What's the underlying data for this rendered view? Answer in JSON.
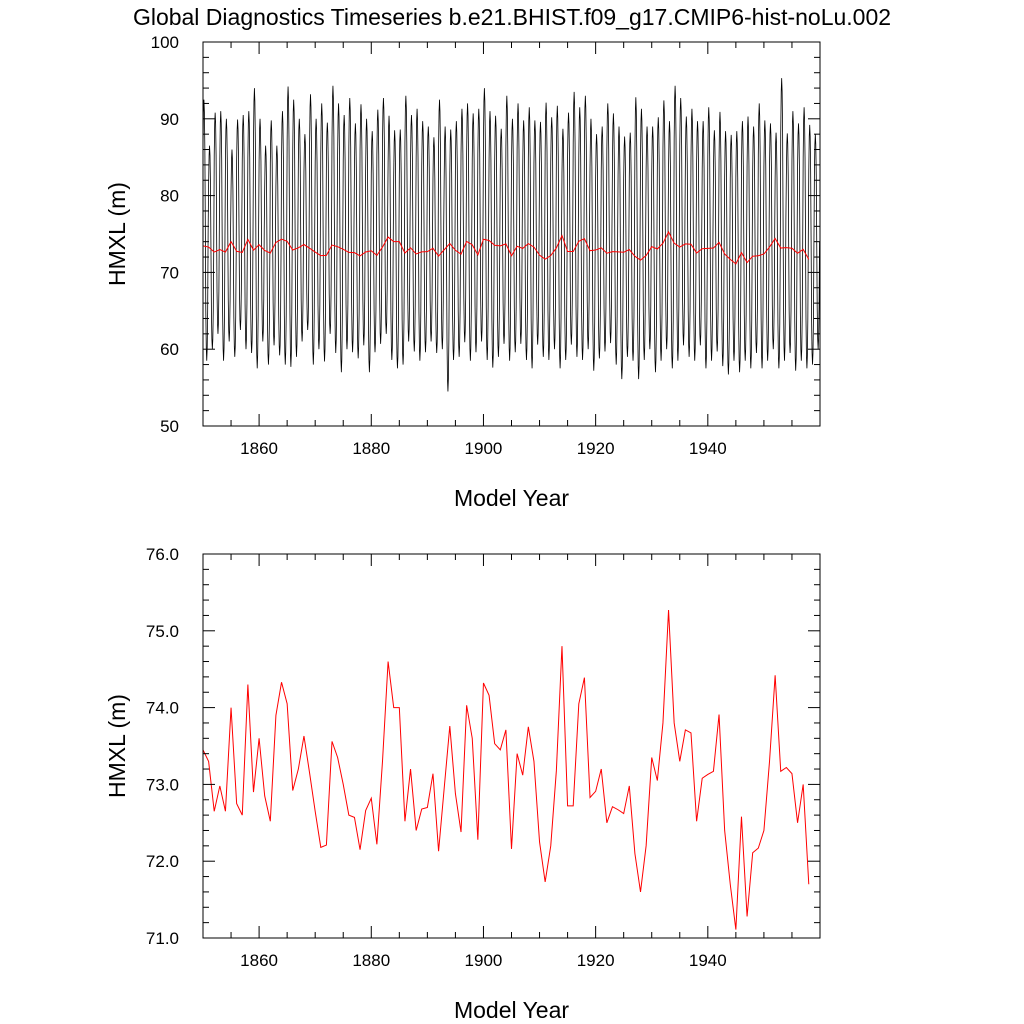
{
  "figure": {
    "title": "Global Diagnostics Timeseries b.e21.BHIST.f09_g17.CMIP6-hist-noLu.002"
  },
  "colors": {
    "monthly": "#000000",
    "annual": "#ff0000"
  },
  "chart_data": [
    {
      "type": "line",
      "xlabel": "Model Year",
      "ylabel": "HMXL (m)",
      "xlim": [
        1850,
        1960
      ],
      "ylim": [
        50,
        100
      ],
      "x_ticks": [
        1860,
        1880,
        1900,
        1920,
        1940
      ],
      "x_tick_labels": [
        "1860",
        "1880",
        "1900",
        "1920",
        "1940"
      ],
      "y_ticks": [
        50,
        60,
        70,
        80,
        90,
        100
      ],
      "y_tick_labels": [
        "50",
        "60",
        "70",
        "80",
        "90",
        "100"
      ],
      "series": [
        {
          "kind": "monthly",
          "color": "#000000",
          "x": [
            1850,
            1959
          ],
          "annual_maxima": [
            92.5,
            86.5,
            90.8,
            91.0,
            90.0,
            86.0,
            89.9,
            90.5,
            91.0,
            94.0,
            90.0,
            86.5,
            89.8,
            86.5,
            91.0,
            94.2,
            92.5,
            90.0,
            88.0,
            93.2,
            90.0,
            92.0,
            89.5,
            94.3,
            92.0,
            90.5,
            92.7,
            89.4,
            91.9,
            90.0,
            88.4,
            91.2,
            92.7,
            90.4,
            88.5,
            88.6,
            93.0,
            90.5,
            91.3,
            89.7,
            89.0,
            87.6,
            92.5,
            89.0,
            88.6,
            89.7,
            91.3,
            92.0,
            90.7,
            91.3,
            94.0,
            91.0,
            90.4,
            88.7,
            93.0,
            90.0,
            92.0,
            89.8,
            91.5,
            89.8,
            89.6,
            92.1,
            90.2,
            91.7,
            88.7,
            90.8,
            93.5,
            91.5,
            93.0,
            90.0,
            88.0,
            89.0,
            92.0,
            90.7,
            89.0,
            87.7,
            88.2,
            92.8,
            91.3,
            89.0,
            89.0,
            90.2,
            92.4,
            89.7,
            94.3,
            92.7,
            90.3,
            91.3,
            89.7,
            89.7,
            91.5,
            88.5,
            90.9,
            88.4,
            87.9,
            88.4,
            89.7,
            90.3,
            89.0,
            92.0,
            89.8,
            89.4,
            88.2,
            95.3,
            88.1,
            91.0,
            89.4,
            91.5,
            89.2,
            88.0
          ],
          "annual_minima": [
            58.5,
            60.0,
            62.0,
            58.5,
            61.0,
            59.0,
            62.5,
            60.0,
            59.5,
            57.5,
            61.0,
            58.0,
            60.5,
            59.2,
            58.0,
            57.7,
            59.0,
            61.0,
            62.5,
            58.0,
            60.0,
            58.4,
            62.0,
            59.5,
            57.0,
            60.0,
            59.6,
            58.8,
            60.5,
            57.0,
            59.6,
            60.7,
            62.0,
            58.6,
            57.5,
            58.0,
            61.0,
            59.7,
            58.5,
            59.6,
            61.0,
            59.5,
            60.0,
            54.5,
            58.6,
            59.0,
            60.9,
            58.5,
            59.6,
            61.0,
            58.6,
            57.6,
            59.0,
            60.7,
            58.5,
            59.6,
            60.7,
            58.6,
            57.5,
            60.6,
            59.0,
            58.6,
            60.0,
            57.5,
            58.6,
            60.6,
            59.0,
            58.6,
            60.0,
            57.2,
            58.8,
            59.7,
            60.8,
            58.0,
            56.1,
            59.0,
            58.5,
            56.1,
            58.6,
            60.0,
            57.0,
            58.5,
            60.0,
            57.5,
            58.5,
            60.5,
            59.0,
            58.5,
            60.5,
            57.5,
            58.5,
            59.7,
            57.8,
            56.7,
            58.5,
            57.0,
            58.5,
            57.5,
            59.5,
            57.5,
            58.5,
            60.0,
            57.5,
            58.5,
            59.5,
            57.2,
            58.5,
            57.5,
            58.0,
            60.0
          ]
        },
        {
          "kind": "annual",
          "color": "#ff0000",
          "x_start": 1850,
          "values": [
            73.45,
            73.3,
            72.65,
            72.98,
            72.65,
            74.0,
            72.75,
            72.6,
            74.3,
            72.9,
            73.6,
            72.85,
            72.52,
            73.9,
            74.33,
            74.05,
            72.92,
            73.2,
            73.63,
            73.15,
            72.65,
            72.18,
            72.21,
            73.56,
            73.35,
            73.0,
            72.6,
            72.57,
            72.15,
            72.66,
            72.82,
            72.22,
            73.3,
            74.6,
            74.0,
            74.0,
            72.52,
            73.2,
            72.4,
            72.68,
            72.7,
            73.14,
            72.13,
            72.95,
            73.76,
            72.88,
            72.38,
            74.03,
            73.6,
            72.28,
            74.32,
            74.16,
            73.53,
            73.45,
            73.71,
            72.16,
            73.4,
            73.12,
            73.75,
            73.3,
            72.25,
            71.73,
            72.2,
            73.18,
            74.8,
            72.72,
            72.72,
            74.05,
            74.39,
            72.83,
            72.91,
            73.2,
            72.5,
            72.71,
            72.67,
            72.62,
            72.98,
            72.1,
            71.6,
            72.2,
            73.35,
            73.05,
            73.8,
            75.27,
            73.8,
            73.3,
            73.71,
            73.67,
            72.52,
            73.08,
            73.13,
            73.17,
            73.91,
            72.4,
            71.7,
            71.11,
            72.58,
            71.28,
            72.11,
            72.17,
            72.4,
            73.3,
            74.42,
            73.17,
            73.22,
            73.14,
            72.5,
            73.0,
            71.7
          ]
        }
      ]
    },
    {
      "type": "line",
      "xlabel": "Model Year",
      "ylabel": "HMXL (m)",
      "xlim": [
        1850,
        1960
      ],
      "ylim": [
        71.0,
        76.0
      ],
      "x_ticks": [
        1860,
        1880,
        1900,
        1920,
        1940
      ],
      "x_tick_labels": [
        "1860",
        "1880",
        "1900",
        "1920",
        "1940"
      ],
      "y_ticks": [
        71.0,
        72.0,
        73.0,
        74.0,
        75.0,
        76.0
      ],
      "y_tick_labels": [
        "71.0",
        "72.0",
        "73.0",
        "74.0",
        "75.0",
        "76.0"
      ],
      "series": [
        {
          "kind": "annual",
          "color": "#ff0000",
          "x_start": 1850,
          "values": [
            73.45,
            73.3,
            72.65,
            72.98,
            72.65,
            74.0,
            72.75,
            72.6,
            74.3,
            72.9,
            73.6,
            72.85,
            72.52,
            73.9,
            74.33,
            74.05,
            72.92,
            73.2,
            73.63,
            73.15,
            72.65,
            72.18,
            72.21,
            73.56,
            73.35,
            73.0,
            72.6,
            72.57,
            72.15,
            72.66,
            72.82,
            72.22,
            73.3,
            74.6,
            74.0,
            74.0,
            72.52,
            73.2,
            72.4,
            72.68,
            72.7,
            73.14,
            72.13,
            72.95,
            73.76,
            72.88,
            72.38,
            74.03,
            73.6,
            72.28,
            74.32,
            74.16,
            73.53,
            73.45,
            73.71,
            72.16,
            73.4,
            73.12,
            73.75,
            73.3,
            72.25,
            71.73,
            72.2,
            73.18,
            74.8,
            72.72,
            72.72,
            74.05,
            74.39,
            72.83,
            72.91,
            73.2,
            72.5,
            72.71,
            72.67,
            72.62,
            72.98,
            72.1,
            71.6,
            72.2,
            73.35,
            73.05,
            73.8,
            75.27,
            73.8,
            73.3,
            73.71,
            73.67,
            72.52,
            73.08,
            73.13,
            73.17,
            73.91,
            72.4,
            71.7,
            71.11,
            72.58,
            71.28,
            72.11,
            72.17,
            72.4,
            73.3,
            74.42,
            73.17,
            73.22,
            73.14,
            72.5,
            73.0,
            71.7
          ]
        }
      ]
    }
  ]
}
